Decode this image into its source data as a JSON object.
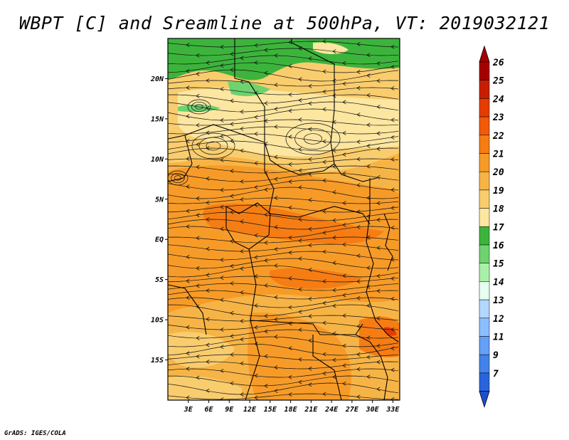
{
  "title": "WBPT [C] and Sreamline at 500hPa, VT: 2019032121",
  "credit": "GrADS: IGES/COLA",
  "map": {
    "lon_range": [
      0,
      34
    ],
    "lat_range": [
      -20,
      25
    ],
    "lat_ticks": [
      {
        "value": 20,
        "label": "20N"
      },
      {
        "value": 15,
        "label": "15N"
      },
      {
        "value": 10,
        "label": "10N"
      },
      {
        "value": 5,
        "label": "5N"
      },
      {
        "value": 0,
        "label": "EQ"
      },
      {
        "value": -5,
        "label": "5S"
      },
      {
        "value": -10,
        "label": "10S"
      },
      {
        "value": -15,
        "label": "15S"
      }
    ],
    "lon_ticks": [
      {
        "value": 3,
        "label": "3E"
      },
      {
        "value": 6,
        "label": "6E"
      },
      {
        "value": 9,
        "label": "9E"
      },
      {
        "value": 12,
        "label": "12E"
      },
      {
        "value": 15,
        "label": "15E"
      },
      {
        "value": 18,
        "label": "18E"
      },
      {
        "value": 21,
        "label": "21E"
      },
      {
        "value": 24,
        "label": "24E"
      },
      {
        "value": 27,
        "label": "27E"
      },
      {
        "value": 30,
        "label": "30E"
      },
      {
        "value": 33,
        "label": "33E"
      }
    ]
  },
  "colorbar": {
    "levels": [
      {
        "label": "26",
        "color": "#a50000"
      },
      {
        "label": "25",
        "color": "#c81e00"
      },
      {
        "label": "24",
        "color": "#e63c00"
      },
      {
        "label": "23",
        "color": "#f05a0a"
      },
      {
        "label": "22",
        "color": "#f57d14"
      },
      {
        "label": "21",
        "color": "#f79b28"
      },
      {
        "label": "20",
        "color": "#f7b446"
      },
      {
        "label": "19",
        "color": "#f9cd6e"
      },
      {
        "label": "18",
        "color": "#fde6a0"
      },
      {
        "label": "17",
        "color": "#3cb43c"
      },
      {
        "label": "16",
        "color": "#6ed26e"
      },
      {
        "label": "15",
        "color": "#aaf0aa"
      },
      {
        "label": "14",
        "color": "#e6fff0"
      },
      {
        "label": "13",
        "color": "#b4d7ff"
      },
      {
        "label": "12",
        "color": "#8cbeff"
      },
      {
        "label": "11",
        "color": "#64a0f5"
      },
      {
        "label": "9",
        "color": "#4182eb"
      },
      {
        "label": "7",
        "color": "#2864dc"
      }
    ],
    "bottom_color": "#1e50cd"
  },
  "colors": {
    "green_dark": "#3cb43c",
    "green_light": "#6ed26e",
    "yellow_pale": "#fde6a0",
    "yellow": "#f9cd6e",
    "orange_light": "#f7b446",
    "orange": "#f79b28",
    "orange_dark": "#f57d14",
    "red_orange": "#e63c00"
  }
}
